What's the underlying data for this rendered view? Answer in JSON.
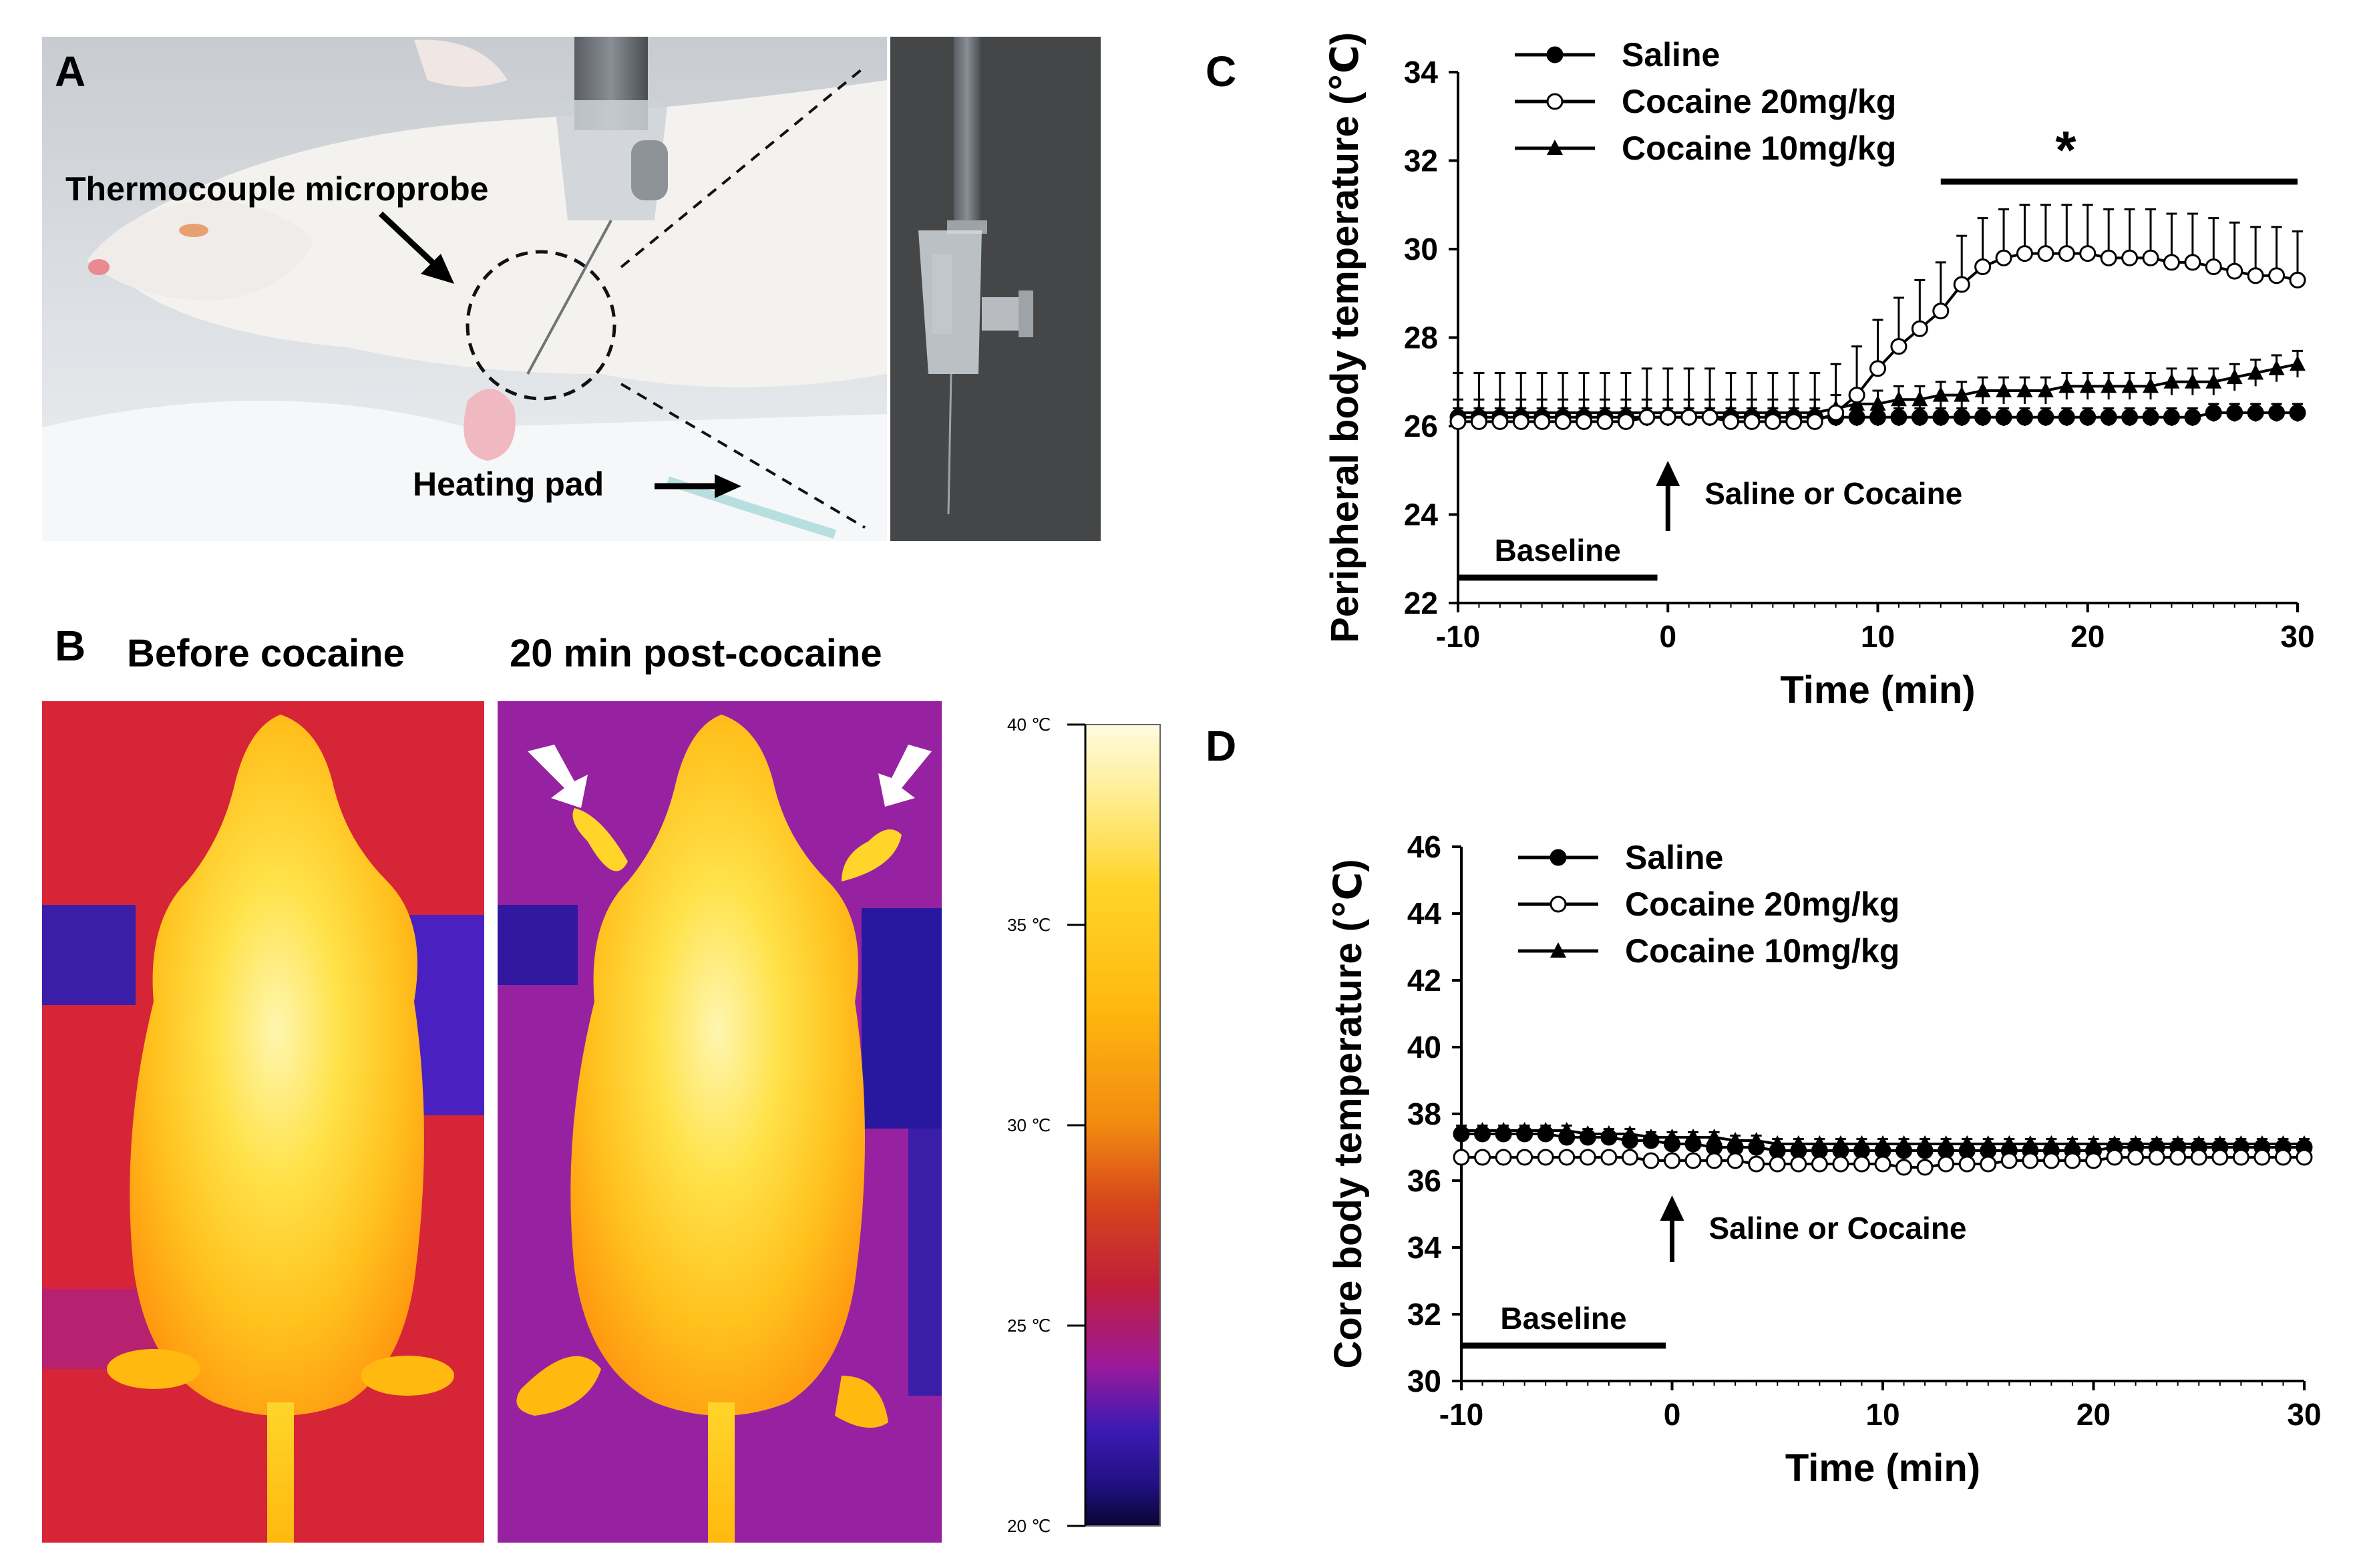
{
  "figure": {
    "panel_a": {
      "letter": "A",
      "probe_label": "Thermocouple microprobe",
      "pad_label": "Heating pad"
    },
    "panel_b": {
      "letter": "B",
      "before_label": "Before cocaine",
      "after_label": "20 min post-cocaine",
      "colorbar_ticks": [
        "40 ℃",
        "35 ℃",
        "30 ℃",
        "25 ℃",
        "20 ℃"
      ],
      "colorbar_range_c": [
        20,
        40
      ]
    },
    "panel_c_letter": "C",
    "panel_d_letter": "D"
  },
  "chart_data": [
    {
      "type": "line",
      "panel": "C",
      "ylabel": "Peripheral body temperature (℃)",
      "xlabel": "Time (min)",
      "xlim": [
        -10,
        30
      ],
      "ylim": [
        22,
        34
      ],
      "xticks": [
        -10,
        0,
        10,
        20,
        30
      ],
      "yticks": [
        22,
        24,
        26,
        28,
        30,
        32,
        34
      ],
      "legend": [
        "Saline",
        "Cocaine 20mg/kg",
        "Cocaine 10mg/kg"
      ],
      "series": [
        {
          "name": "Saline",
          "marker": "filled-circle",
          "x": [
            -10,
            -9,
            -8,
            -7,
            -6,
            -5,
            -4,
            -3,
            -2,
            -1,
            0,
            1,
            2,
            3,
            4,
            5,
            6,
            7,
            8,
            9,
            10,
            11,
            12,
            13,
            14,
            15,
            16,
            17,
            18,
            19,
            20,
            21,
            22,
            23,
            24,
            25,
            26,
            27,
            28,
            29,
            30
          ],
          "y": [
            26.2,
            26.2,
            26.2,
            26.2,
            26.2,
            26.2,
            26.2,
            26.2,
            26.2,
            26.2,
            26.2,
            26.2,
            26.2,
            26.2,
            26.2,
            26.2,
            26.2,
            26.2,
            26.2,
            26.2,
            26.2,
            26.2,
            26.2,
            26.2,
            26.2,
            26.2,
            26.2,
            26.2,
            26.2,
            26.2,
            26.2,
            26.2,
            26.2,
            26.2,
            26.2,
            26.2,
            26.3,
            26.3,
            26.3,
            26.3,
            26.3
          ],
          "err": 0.2
        },
        {
          "name": "Cocaine 20mg/kg",
          "marker": "open-circle",
          "x": [
            -10,
            -9,
            -8,
            -7,
            -6,
            -5,
            -4,
            -3,
            -2,
            -1,
            0,
            1,
            2,
            3,
            4,
            5,
            6,
            7,
            8,
            9,
            10,
            11,
            12,
            13,
            14,
            15,
            16,
            17,
            18,
            19,
            20,
            21,
            22,
            23,
            24,
            25,
            26,
            27,
            28,
            29,
            30
          ],
          "y": [
            26.1,
            26.1,
            26.1,
            26.1,
            26.1,
            26.1,
            26.1,
            26.1,
            26.1,
            26.2,
            26.2,
            26.2,
            26.2,
            26.1,
            26.1,
            26.1,
            26.1,
            26.1,
            26.3,
            26.7,
            27.3,
            27.8,
            28.2,
            28.6,
            29.2,
            29.6,
            29.8,
            29.9,
            29.9,
            29.9,
            29.9,
            29.8,
            29.8,
            29.8,
            29.7,
            29.7,
            29.6,
            29.5,
            29.4,
            29.4,
            29.3
          ],
          "err": 1.1
        },
        {
          "name": "Cocaine 10mg/kg",
          "marker": "filled-triangle",
          "x": [
            -10,
            -9,
            -8,
            -7,
            -6,
            -5,
            -4,
            -3,
            -2,
            -1,
            0,
            1,
            2,
            3,
            4,
            5,
            6,
            7,
            8,
            9,
            10,
            11,
            12,
            13,
            14,
            15,
            16,
            17,
            18,
            19,
            20,
            21,
            22,
            23,
            24,
            25,
            26,
            27,
            28,
            29,
            30
          ],
          "y": [
            26.3,
            26.3,
            26.3,
            26.3,
            26.3,
            26.3,
            26.3,
            26.3,
            26.3,
            26.3,
            26.3,
            26.3,
            26.3,
            26.3,
            26.3,
            26.3,
            26.3,
            26.3,
            26.4,
            26.5,
            26.5,
            26.6,
            26.6,
            26.7,
            26.7,
            26.8,
            26.8,
            26.8,
            26.8,
            26.9,
            26.9,
            26.9,
            26.9,
            26.9,
            27.0,
            27.0,
            27.0,
            27.1,
            27.2,
            27.3,
            27.4
          ],
          "err": 0.3
        }
      ],
      "annotations": {
        "injection_label": "Saline or Cocaine",
        "baseline_label": "Baseline",
        "baseline_range": [
          -10,
          -0.5
        ],
        "significance_mark": "*",
        "significance_range": [
          13,
          30
        ]
      }
    },
    {
      "type": "line",
      "panel": "D",
      "ylabel": "Core body temperature (℃)",
      "xlabel": "Time (min)",
      "xlim": [
        -10,
        30
      ],
      "ylim": [
        30,
        46
      ],
      "xticks": [
        -10,
        0,
        10,
        20,
        30
      ],
      "yticks": [
        30,
        32,
        34,
        36,
        38,
        40,
        42,
        44,
        46
      ],
      "legend": [
        "Saline",
        "Cocaine 20mg/kg",
        "Cocaine 10mg/kg"
      ],
      "series": [
        {
          "name": "Saline",
          "marker": "filled-circle",
          "x": [
            -10,
            -9,
            -8,
            -7,
            -6,
            -5,
            -4,
            -3,
            -2,
            -1,
            0,
            1,
            2,
            3,
            4,
            5,
            6,
            7,
            8,
            9,
            10,
            11,
            12,
            13,
            14,
            15,
            16,
            17,
            18,
            19,
            20,
            21,
            22,
            23,
            24,
            25,
            26,
            27,
            28,
            29,
            30
          ],
          "y": [
            37.4,
            37.4,
            37.4,
            37.4,
            37.4,
            37.3,
            37.3,
            37.3,
            37.2,
            37.2,
            37.1,
            37.1,
            37.0,
            37.0,
            37.0,
            36.9,
            36.9,
            36.9,
            36.9,
            36.9,
            36.9,
            36.9,
            36.9,
            36.9,
            36.9,
            36.9,
            36.9,
            36.9,
            36.9,
            36.9,
            36.9,
            37.0,
            37.0,
            37.0,
            37.0,
            37.0,
            37.0,
            37.0,
            37.0,
            37.0,
            37.0
          ],
          "err": 0.15
        },
        {
          "name": "Cocaine 20mg/kg",
          "marker": "open-circle",
          "x": [
            -10,
            -9,
            -8,
            -7,
            -6,
            -5,
            -4,
            -3,
            -2,
            -1,
            0,
            1,
            2,
            3,
            4,
            5,
            6,
            7,
            8,
            9,
            10,
            11,
            12,
            13,
            14,
            15,
            16,
            17,
            18,
            19,
            20,
            21,
            22,
            23,
            24,
            25,
            26,
            27,
            28,
            29,
            30
          ],
          "y": [
            36.7,
            36.7,
            36.7,
            36.7,
            36.7,
            36.7,
            36.7,
            36.7,
            36.7,
            36.6,
            36.6,
            36.6,
            36.6,
            36.6,
            36.5,
            36.5,
            36.5,
            36.5,
            36.5,
            36.5,
            36.5,
            36.4,
            36.4,
            36.5,
            36.5,
            36.5,
            36.6,
            36.6,
            36.6,
            36.6,
            36.6,
            36.7,
            36.7,
            36.7,
            36.7,
            36.7,
            36.7,
            36.7,
            36.7,
            36.7,
            36.7
          ],
          "err": 0.1
        },
        {
          "name": "Cocaine 10mg/kg",
          "marker": "filled-triangle",
          "x": [
            -10,
            -9,
            -8,
            -7,
            -6,
            -5,
            -4,
            -3,
            -2,
            -1,
            0,
            1,
            2,
            3,
            4,
            5,
            6,
            7,
            8,
            9,
            10,
            11,
            12,
            13,
            14,
            15,
            16,
            17,
            18,
            19,
            20,
            21,
            22,
            23,
            24,
            25,
            26,
            27,
            28,
            29,
            30
          ],
          "y": [
            37.5,
            37.5,
            37.5,
            37.5,
            37.5,
            37.5,
            37.4,
            37.4,
            37.4,
            37.3,
            37.3,
            37.3,
            37.3,
            37.2,
            37.2,
            37.1,
            37.1,
            37.1,
            37.1,
            37.1,
            37.1,
            37.1,
            37.1,
            37.1,
            37.1,
            37.1,
            37.1,
            37.1,
            37.1,
            37.1,
            37.1,
            37.1,
            37.1,
            37.1,
            37.1,
            37.1,
            37.1,
            37.1,
            37.1,
            37.1,
            37.1
          ],
          "err": 0.15
        }
      ],
      "annotations": {
        "injection_label": "Saline or Cocaine",
        "baseline_label": "Baseline",
        "baseline_range": [
          -10,
          -0.3
        ]
      }
    }
  ]
}
